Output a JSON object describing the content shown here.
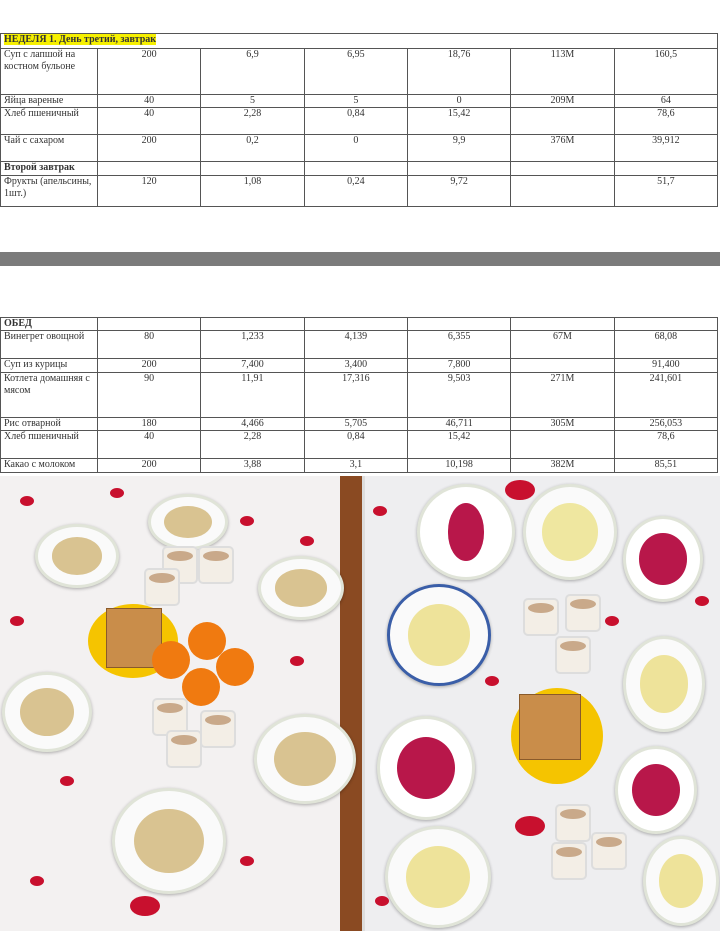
{
  "breakfast_table": {
    "heading": "НЕДЕЛЯ 1. День третий, завтрак",
    "rows": [
      {
        "name": "Суп с лапшой на костном бульоне",
        "c1": "200",
        "c2": "6,9",
        "c3": "6,95",
        "c4": "18,76",
        "c5": "113М",
        "c6": "160,5"
      },
      {
        "name": "Яйца вареные",
        "c1": "40",
        "c2": "5",
        "c3": "5",
        "c4": "0",
        "c5": "209М",
        "c6": "64"
      },
      {
        "name": "Хлеб пшеничный",
        "c1": "40",
        "c2": "2,28",
        "c3": "0,84",
        "c4": "15,42",
        "c5": "",
        "c6": "78,6"
      },
      {
        "name": "Чай с сахаром",
        "c1": "200",
        "c2": "0,2",
        "c3": "0",
        "c4": "9,9",
        "c5": "376М",
        "c6": "39,912"
      }
    ],
    "second_heading": "Второй завтрак",
    "second_rows": [
      {
        "name": "Фрукты (апельсины, 1шт.)",
        "c1": "120",
        "c2": "1,08",
        "c3": "0,24",
        "c4": "9,72",
        "c5": "",
        "c6": "51,7"
      }
    ]
  },
  "lunch_table": {
    "heading": "ОБЕД",
    "rows": [
      {
        "name": "Винегрет овощной",
        "c1": "80",
        "c2": "1,233",
        "c3": "4,139",
        "c4": "6,355",
        "c5": "67М",
        "c6": "68,08"
      },
      {
        "name": "Суп из курицы",
        "c1": "200",
        "c2": "7,400",
        "c3": "3,400",
        "c4": "7,800",
        "c5": "",
        "c6": "91,400"
      },
      {
        "name": "Котлета домашняя с мясом",
        "c1": "90",
        "c2": "11,91",
        "c3": "17,316",
        "c4": "9,503",
        "c5": "271М",
        "c6": "241,601"
      },
      {
        "name": "Рис отварной",
        "c1": "180",
        "c2": "4,466",
        "c3": "5,705",
        "c4": "46,711",
        "c5": "305М",
        "c6": "256,053"
      },
      {
        "name": "Хлеб пшеничный",
        "c1": "40",
        "c2": "2,28",
        "c3": "0,84",
        "c4": "15,42",
        "c5": "",
        "c6": "78,6"
      },
      {
        "name": "Какао с молоком",
        "c1": "200",
        "c2": "3,88",
        "c3": "3,1",
        "c4": "10,198",
        "c5": "382М",
        "c6": "85,51"
      }
    ]
  },
  "colors": {
    "highlight": "#f6f000",
    "separator": "#7b7b7b",
    "petals": "#c8102e"
  }
}
